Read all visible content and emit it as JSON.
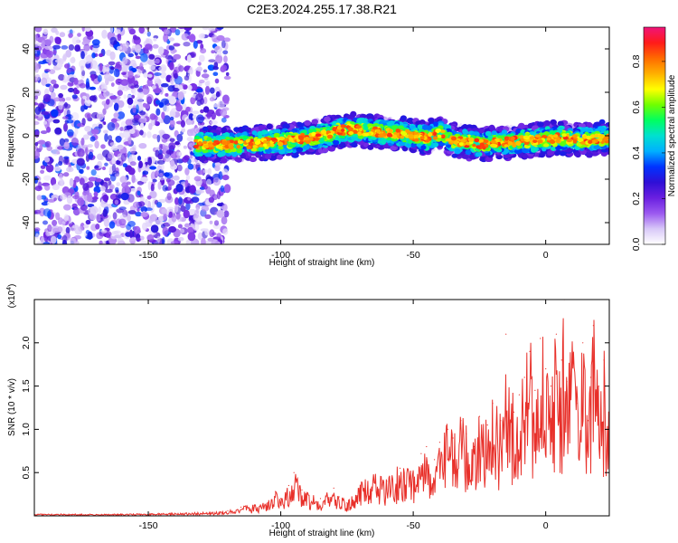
{
  "title": "C2E3.2024.255.17.38.R21",
  "chart_data": [
    {
      "type": "heatmap",
      "title": "C2E3.2024.255.17.38.R21",
      "xlabel": "Height of straight line (km)",
      "ylabel": "Frequency (Hz)",
      "xlim": [
        -193,
        24
      ],
      "ylim": [
        -50,
        50
      ],
      "xticks": [
        "-150",
        "-100",
        "-50",
        "0"
      ],
      "yticks": [
        "40",
        "20",
        "0",
        "-20",
        "-40"
      ],
      "grid": false,
      "signal_track": {
        "x": [
          -135,
          -125,
          -115,
          -105,
          -95,
          -85,
          -75,
          -65,
          -55,
          -45,
          -40,
          -35,
          -25,
          -15,
          -5,
          5,
          15,
          22
        ],
        "frequency": [
          -4,
          -4,
          -4,
          -3,
          -2,
          0,
          3,
          2,
          1,
          -1,
          1,
          -2,
          -4,
          -3,
          -2,
          -1,
          -2,
          -1
        ]
      },
      "noise_region_x": [
        -193,
        -130
      ],
      "colorbar": {
        "label": "Normalized spectral amplitude",
        "range": [
          0,
          0.95
        ],
        "ticks": [
          "0.8",
          "0.6",
          "0.4",
          "0.2",
          "0.0"
        ],
        "colors": [
          "#ffffff",
          "#d8c8f8",
          "#9b59f0",
          "#6a1fe0",
          "#2f0fd6",
          "#0033ff",
          "#00b0ff",
          "#00e0d0",
          "#00ff60",
          "#70ff00",
          "#ffff00",
          "#ffb000",
          "#ff6a00",
          "#ff1a1a",
          "#f0147a"
        ]
      }
    },
    {
      "type": "line",
      "xlabel": "Height of straight line (km)",
      "ylabel": "SNR (10 * v/v)",
      "multiplier": "(x10",
      "multiplier_exp": "4",
      "xlim": [
        -193,
        24
      ],
      "ylim": [
        0,
        2.5
      ],
      "xticks": [
        "-150",
        "-100",
        "-50",
        "0"
      ],
      "yticks": [
        "2.0",
        "1.5",
        "1.0",
        "0.5"
      ],
      "grid": false,
      "series": [
        {
          "color": "#e8302a",
          "x": [
            -193,
            -180,
            -160,
            -140,
            -125,
            -120,
            -115,
            -110,
            -105,
            -102,
            -100,
            -97,
            -95,
            -92,
            -90,
            -85,
            -80,
            -78,
            -75,
            -70,
            -65,
            -60,
            -55,
            -50,
            -47,
            -45,
            -42,
            -40,
            -37,
            -35,
            -32,
            -30,
            -27,
            -25,
            -22,
            -20,
            -17,
            -15,
            -12,
            -10,
            -8,
            -6,
            -4,
            -2,
            0,
            2,
            4,
            6,
            7,
            8,
            10,
            12,
            14,
            16,
            17,
            18,
            20,
            22,
            24
          ],
          "y": [
            0.02,
            0.02,
            0.02,
            0.03,
            0.04,
            0.06,
            0.1,
            0.12,
            0.15,
            0.28,
            0.2,
            0.35,
            0.5,
            0.3,
            0.25,
            0.2,
            0.32,
            0.22,
            0.15,
            0.35,
            0.45,
            0.4,
            0.55,
            0.5,
            0.72,
            0.8,
            0.65,
            0.85,
            1.0,
            0.9,
            1.1,
            0.95,
            0.8,
            1.15,
            1.05,
            1.3,
            1.1,
            2.1,
            1.2,
            1.4,
            1.6,
            1.9,
            1.45,
            2.05,
            1.7,
            1.5,
            2.1,
            1.8,
            2.5,
            1.55,
            1.9,
            1.3,
            2.0,
            1.1,
            1.6,
            2.2,
            1.5,
            1.8,
            1.15
          ]
        }
      ]
    }
  ]
}
